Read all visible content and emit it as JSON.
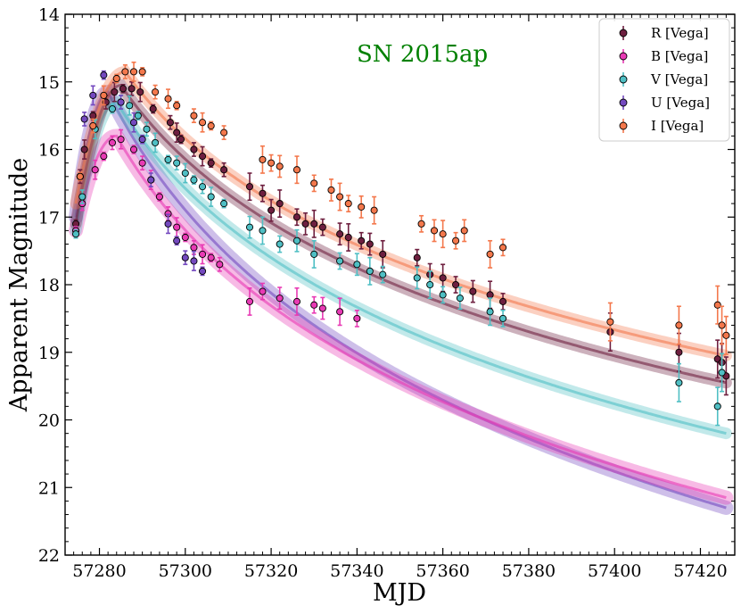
{
  "chart_data": {
    "type": "scatter",
    "title": "",
    "annotation": "SN 2015ap",
    "annotation_color": "#008000",
    "xlabel": "MJD",
    "ylabel": "Apparent Magnitude",
    "xlim": [
      57272,
      57428
    ],
    "ylim": [
      22,
      14
    ],
    "y_inverted": true,
    "xticks": [
      57280,
      57300,
      57320,
      57340,
      57360,
      57380,
      57400,
      57420
    ],
    "yticks": [
      14,
      15,
      16,
      17,
      18,
      19,
      20,
      21,
      22
    ],
    "xtick_labels": [
      "57280",
      "57300",
      "57320",
      "57340",
      "57360",
      "57380",
      "57400",
      "57420"
    ],
    "ytick_labels": [
      "14",
      "15",
      "16",
      "17",
      "18",
      "19",
      "20",
      "21",
      "22"
    ],
    "grid": false,
    "legend_position": "top-right",
    "series": [
      {
        "name": "R [Vega]",
        "color": "#6e1f3f",
        "model": {
          "peak_mjd": 57285,
          "peak_mag": 15.05,
          "start_mag": 17.1,
          "end_mag": 19.45
        },
        "points": [
          [
            57274.5,
            17.1
          ],
          [
            57275.5,
            16.4
          ],
          [
            57276.5,
            16.0
          ],
          [
            57278.5,
            15.5
          ],
          [
            57281.5,
            15.3
          ],
          [
            57283.5,
            15.15
          ],
          [
            57285.5,
            15.1
          ],
          [
            57287.5,
            15.1
          ],
          [
            57289.5,
            15.15
          ],
          [
            57292.5,
            15.4
          ],
          [
            57296.5,
            15.6
          ],
          [
            57298,
            15.75
          ],
          [
            57299,
            15.85
          ],
          [
            57302,
            16.0
          ],
          [
            57304,
            16.1
          ],
          [
            57306,
            16.2
          ],
          [
            57309,
            16.3
          ],
          [
            57315,
            16.55
          ],
          [
            57318,
            16.65
          ],
          [
            57320,
            16.9
          ],
          [
            57322,
            16.8
          ],
          [
            57326,
            17.0
          ],
          [
            57328,
            17.1
          ],
          [
            57330,
            17.1
          ],
          [
            57332,
            17.15
          ],
          [
            57336,
            17.25
          ],
          [
            57338,
            17.3
          ],
          [
            57341,
            17.35
          ],
          [
            57343,
            17.4
          ],
          [
            57346,
            17.55
          ],
          [
            57354,
            17.6
          ],
          [
            57357,
            17.85
          ],
          [
            57360,
            17.9
          ],
          [
            57363,
            18.0
          ],
          [
            57367,
            18.1
          ],
          [
            57371,
            18.15
          ],
          [
            57374,
            18.25
          ],
          [
            57399,
            18.7
          ],
          [
            57415,
            19.0
          ],
          [
            57424,
            19.1
          ],
          [
            57425,
            19.15
          ],
          [
            57426,
            19.35
          ]
        ]
      },
      {
        "name": "B [Vega]",
        "color": "#e83ab4",
        "model": {
          "peak_mjd": 57284,
          "peak_mag": 15.8,
          "start_mag": 17.2,
          "end_mag": 21.15
        },
        "points": [
          [
            57274.5,
            17.2
          ],
          [
            57276,
            16.8
          ],
          [
            57279,
            16.3
          ],
          [
            57281,
            16.1
          ],
          [
            57283,
            15.9
          ],
          [
            57285,
            15.85
          ],
          [
            57288,
            16.0
          ],
          [
            57290,
            16.2
          ],
          [
            57292,
            16.45
          ],
          [
            57294,
            16.7
          ],
          [
            57296,
            16.95
          ],
          [
            57298,
            17.15
          ],
          [
            57300,
            17.3
          ],
          [
            57302,
            17.45
          ],
          [
            57304,
            17.55
          ],
          [
            57306,
            17.6
          ],
          [
            57308,
            17.7
          ],
          [
            57315,
            18.25
          ],
          [
            57318,
            18.1
          ],
          [
            57322,
            18.2
          ],
          [
            57326,
            18.25
          ],
          [
            57330,
            18.3
          ],
          [
            57332,
            18.35
          ],
          [
            57336,
            18.4
          ],
          [
            57340,
            18.5
          ]
        ]
      },
      {
        "name": "V [Vega]",
        "color": "#4fbfc4",
        "model": {
          "peak_mjd": 57284,
          "peak_mag": 15.3,
          "start_mag": 17.2,
          "end_mag": 20.2
        },
        "points": [
          [
            57274.5,
            17.25
          ],
          [
            57276,
            16.7
          ],
          [
            57279,
            15.7
          ],
          [
            57283,
            15.4
          ],
          [
            57285,
            15.3
          ],
          [
            57287,
            15.35
          ],
          [
            57289,
            15.5
          ],
          [
            57291,
            15.7
          ],
          [
            57293,
            15.9
          ],
          [
            57296,
            16.15
          ],
          [
            57298,
            16.2
          ],
          [
            57300,
            16.35
          ],
          [
            57302,
            16.45
          ],
          [
            57304,
            16.55
          ],
          [
            57306,
            16.7
          ],
          [
            57309,
            16.8
          ],
          [
            57315,
            17.15
          ],
          [
            57318,
            17.2
          ],
          [
            57322,
            17.4
          ],
          [
            57326,
            17.35
          ],
          [
            57330,
            17.55
          ],
          [
            57336,
            17.65
          ],
          [
            57340,
            17.7
          ],
          [
            57343,
            17.8
          ],
          [
            57346,
            17.85
          ],
          [
            57354,
            17.9
          ],
          [
            57357,
            18.0
          ],
          [
            57360,
            18.15
          ],
          [
            57364,
            18.2
          ],
          [
            57371,
            18.4
          ],
          [
            57374,
            18.5
          ],
          [
            57415,
            19.45
          ],
          [
            57424,
            19.8
          ],
          [
            57425,
            19.3
          ]
        ]
      },
      {
        "name": "U [Vega]",
        "color": "#7449bf",
        "model": {
          "peak_mjd": 57282,
          "peak_mag": 15.15,
          "start_mag": 17.0,
          "end_mag": 21.3
        },
        "points": [
          [
            57275.5,
            16.4
          ],
          [
            57276.5,
            15.55
          ],
          [
            57278.5,
            15.2
          ],
          [
            57281,
            14.9
          ],
          [
            57285,
            15.3
          ],
          [
            57288,
            15.6
          ],
          [
            57290,
            15.85
          ],
          [
            57292,
            16.45
          ],
          [
            57296,
            17.1
          ],
          [
            57298,
            17.35
          ],
          [
            57300,
            17.6
          ],
          [
            57302,
            17.65
          ],
          [
            57304,
            17.8
          ]
        ]
      },
      {
        "name": "I [Vega]",
        "color": "#f4784c",
        "model": {
          "peak_mjd": 57286,
          "peak_mag": 14.85,
          "start_mag": 16.8,
          "end_mag": 19.05
        },
        "points": [
          [
            57275.5,
            16.4
          ],
          [
            57278.5,
            15.65
          ],
          [
            57281,
            15.2
          ],
          [
            57284,
            14.95
          ],
          [
            57286,
            14.85
          ],
          [
            57288,
            14.85
          ],
          [
            57290,
            14.85
          ],
          [
            57293,
            15.15
          ],
          [
            57296,
            15.25
          ],
          [
            57298,
            15.35
          ],
          [
            57302,
            15.5
          ],
          [
            57304,
            15.6
          ],
          [
            57306,
            15.65
          ],
          [
            57309,
            15.75
          ],
          [
            57318,
            16.15
          ],
          [
            57320,
            16.2
          ],
          [
            57322,
            16.25
          ],
          [
            57326,
            16.3
          ],
          [
            57330,
            16.5
          ],
          [
            57334,
            16.6
          ],
          [
            57336,
            16.7
          ],
          [
            57338,
            16.8
          ],
          [
            57341,
            16.85
          ],
          [
            57344,
            16.9
          ],
          [
            57355,
            17.1
          ],
          [
            57358,
            17.2
          ],
          [
            57360,
            17.25
          ],
          [
            57363,
            17.35
          ],
          [
            57365,
            17.2
          ],
          [
            57371,
            17.55
          ],
          [
            57374,
            17.45
          ],
          [
            57399,
            18.55
          ],
          [
            57415,
            18.6
          ],
          [
            57424,
            18.3
          ],
          [
            57425,
            18.6
          ],
          [
            57426,
            18.75
          ]
        ]
      }
    ]
  }
}
